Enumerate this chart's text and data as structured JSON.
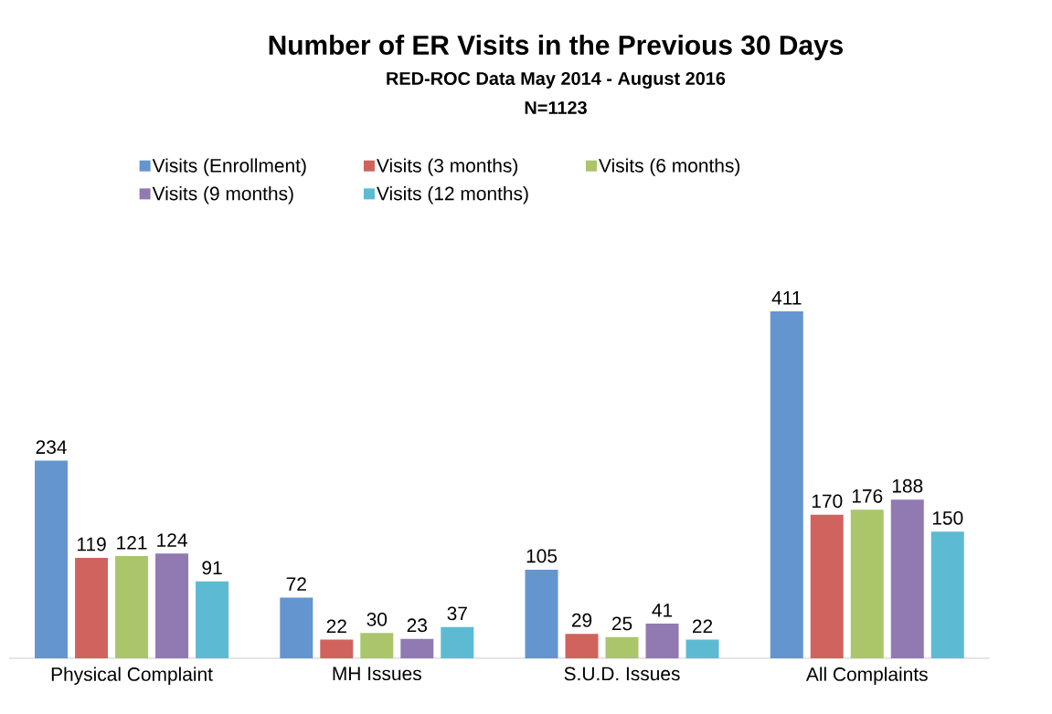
{
  "chart_data": {
    "type": "bar",
    "title": "Number of ER Visits in the Previous 30 Days",
    "subtitle": "RED-ROC Data May 2014 - August 2016",
    "annotations": [
      "N=1123"
    ],
    "categories": [
      "Physical Complaint",
      "MH Issues",
      "S.U.D. Issues",
      "All Complaints"
    ],
    "series": [
      {
        "name": "Visits (Enrollment)",
        "color": "#6495cf",
        "values": [
          234,
          72,
          105,
          411
        ]
      },
      {
        "name": "Visits (3 months)",
        "color": "#d0635d",
        "values": [
          119,
          22,
          29,
          170
        ]
      },
      {
        "name": "Visits (6 months)",
        "color": "#abc56b",
        "values": [
          121,
          30,
          25,
          176
        ]
      },
      {
        "name": "Visits (9 months)",
        "color": "#9179b2",
        "values": [
          124,
          23,
          41,
          188
        ]
      },
      {
        "name": "Visits (12 months)",
        "color": "#5cbbd2",
        "values": [
          91,
          37,
          22,
          150
        ]
      }
    ],
    "data_labels": true,
    "legend": "top"
  }
}
